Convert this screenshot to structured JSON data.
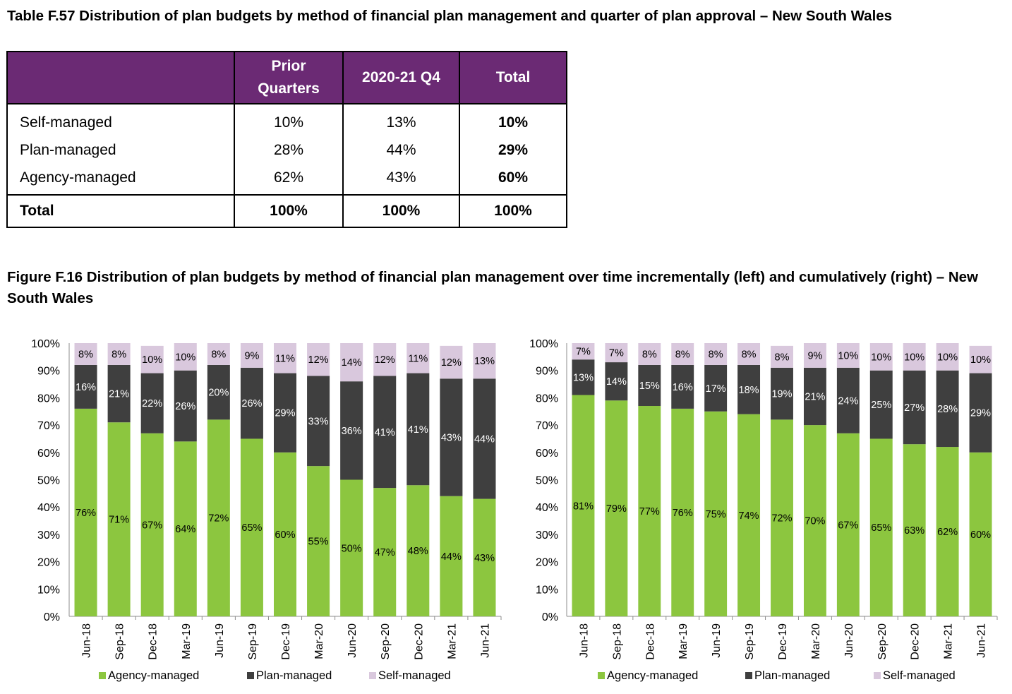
{
  "table_title": "Table F.57 Distribution of plan budgets by method of financial plan management and quarter of plan approval – New South Wales",
  "table": {
    "headers": [
      "",
      "Prior Quarters",
      "2020-21 Q4",
      "Total"
    ],
    "rows": [
      {
        "label": "Self-managed",
        "values": [
          "10%",
          "13%",
          "10%"
        ]
      },
      {
        "label": "Plan-managed",
        "values": [
          "28%",
          "44%",
          "29%"
        ]
      },
      {
        "label": "Agency-managed",
        "values": [
          "62%",
          "43%",
          "60%"
        ]
      }
    ],
    "total_row": {
      "label": "Total",
      "values": [
        "100%",
        "100%",
        "100%"
      ]
    }
  },
  "figure_title": "Figure F.16 Distribution of plan budgets by method of financial plan management over time incrementally (left) and cumulatively (right) – New South Wales",
  "colors": {
    "agency": "#8cc63f",
    "plan": "#3f3f3f",
    "self": "#d9c8dd",
    "header_bg": "#6b2a74"
  },
  "chart_data": [
    {
      "type": "bar",
      "stacked": true,
      "title": "",
      "xlabel": "",
      "ylabel": "",
      "ylim": [
        0,
        100
      ],
      "yticks": [
        "0%",
        "10%",
        "20%",
        "30%",
        "40%",
        "50%",
        "60%",
        "70%",
        "80%",
        "90%",
        "100%"
      ],
      "categories": [
        "Jun-18",
        "Sep-18",
        "Dec-18",
        "Mar-19",
        "Jun-19",
        "Sep-19",
        "Dec-19",
        "Mar-20",
        "Jun-20",
        "Sep-20",
        "Dec-20",
        "Mar-21",
        "Jun-21"
      ],
      "series": [
        {
          "name": "Agency-managed",
          "values": [
            76,
            71,
            67,
            64,
            72,
            65,
            60,
            55,
            50,
            47,
            48,
            44,
            43
          ]
        },
        {
          "name": "Plan-managed",
          "values": [
            16,
            21,
            22,
            26,
            20,
            26,
            29,
            33,
            36,
            41,
            41,
            43,
            44
          ]
        },
        {
          "name": "Self-managed",
          "values": [
            8,
            8,
            10,
            10,
            8,
            9,
            11,
            12,
            14,
            12,
            11,
            12,
            13
          ]
        }
      ],
      "legend": "bottom"
    },
    {
      "type": "bar",
      "stacked": true,
      "title": "",
      "xlabel": "",
      "ylabel": "",
      "ylim": [
        0,
        100
      ],
      "yticks": [
        "0%",
        "10%",
        "20%",
        "30%",
        "40%",
        "50%",
        "60%",
        "70%",
        "80%",
        "90%",
        "100%"
      ],
      "categories": [
        "Jun-18",
        "Sep-18",
        "Dec-18",
        "Mar-19",
        "Jun-19",
        "Sep-19",
        "Dec-19",
        "Mar-20",
        "Jun-20",
        "Sep-20",
        "Dec-20",
        "Mar-21",
        "Jun-21"
      ],
      "series": [
        {
          "name": "Agency-managed",
          "values": [
            81,
            79,
            77,
            76,
            75,
            74,
            72,
            70,
            67,
            65,
            63,
            62,
            60
          ]
        },
        {
          "name": "Plan-managed",
          "values": [
            13,
            14,
            15,
            16,
            17,
            18,
            19,
            21,
            24,
            25,
            27,
            28,
            29
          ]
        },
        {
          "name": "Self-managed",
          "values": [
            7,
            7,
            8,
            8,
            8,
            8,
            8,
            9,
            10,
            10,
            10,
            10,
            10
          ]
        }
      ],
      "legend": "bottom"
    }
  ]
}
